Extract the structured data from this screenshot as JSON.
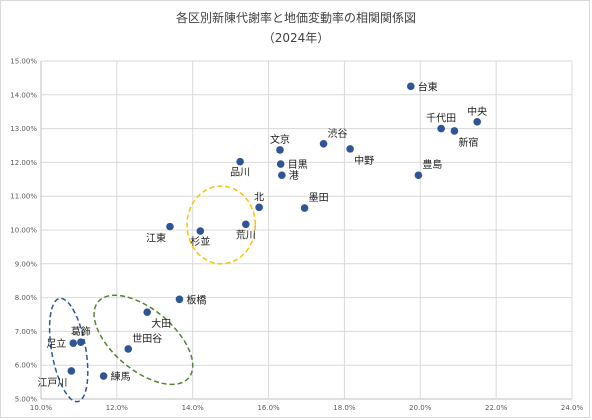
{
  "chart_data": {
    "type": "scatter",
    "title": "各区別新陳代謝率と地価変動率の相関関係図",
    "subtitle": "（2024年）",
    "xlabel": "",
    "ylabel": "",
    "xlim": [
      0.1,
      0.24
    ],
    "ylim": [
      0.05,
      0.15
    ],
    "x_ticks": [
      "10.0%",
      "12.0%",
      "14.0%",
      "16.0%",
      "18.0%",
      "20.0%",
      "22.0%",
      "24.0%"
    ],
    "y_ticks": [
      "5.00%",
      "6.00%",
      "7.00%",
      "8.00%",
      "9.00%",
      "10.00%",
      "11.00%",
      "12.00%",
      "13.00%",
      "14.00%",
      "15.00%"
    ],
    "grid": true,
    "marker_color": "#2f5597",
    "points": [
      {
        "label": "台東",
        "x": 0.1975,
        "y": 0.1425,
        "pos": "right"
      },
      {
        "label": "中央",
        "x": 0.215,
        "y": 0.132,
        "pos": "above"
      },
      {
        "label": "千代田",
        "x": 0.2055,
        "y": 0.13,
        "pos": "above"
      },
      {
        "label": "新宿",
        "x": 0.209,
        "y": 0.1293,
        "pos": "below-right"
      },
      {
        "label": "豊島",
        "x": 0.1995,
        "y": 0.1162,
        "pos": "above-right"
      },
      {
        "label": "渋谷",
        "x": 0.1745,
        "y": 0.1255,
        "pos": "above-right"
      },
      {
        "label": "中野",
        "x": 0.1815,
        "y": 0.124,
        "pos": "below-right"
      },
      {
        "label": "文京",
        "x": 0.163,
        "y": 0.1237,
        "pos": "above"
      },
      {
        "label": "目黒",
        "x": 0.1632,
        "y": 0.1195,
        "pos": "right"
      },
      {
        "label": "港",
        "x": 0.1635,
        "y": 0.1162,
        "pos": "right"
      },
      {
        "label": "品川",
        "x": 0.1525,
        "y": 0.1202,
        "pos": "below"
      },
      {
        "label": "墨田",
        "x": 0.1695,
        "y": 0.1065,
        "pos": "above-right"
      },
      {
        "label": "北",
        "x": 0.1575,
        "y": 0.1067,
        "pos": "above"
      },
      {
        "label": "荒川",
        "x": 0.154,
        "y": 0.1017,
        "pos": "below"
      },
      {
        "label": "杉並",
        "x": 0.142,
        "y": 0.0997,
        "pos": "below"
      },
      {
        "label": "江東",
        "x": 0.134,
        "y": 0.101,
        "pos": "below-left"
      },
      {
        "label": "板橋",
        "x": 0.1365,
        "y": 0.0795,
        "pos": "right"
      },
      {
        "label": "大田",
        "x": 0.128,
        "y": 0.0757,
        "pos": "below-right"
      },
      {
        "label": "世田谷",
        "x": 0.123,
        "y": 0.0648,
        "pos": "above-right"
      },
      {
        "label": "練馬",
        "x": 0.1165,
        "y": 0.0568,
        "pos": "right"
      },
      {
        "label": "葛飾",
        "x": 0.1105,
        "y": 0.0668,
        "pos": "above"
      },
      {
        "label": "足立",
        "x": 0.1085,
        "y": 0.0665,
        "pos": "left"
      },
      {
        "label": "江戸川",
        "x": 0.108,
        "y": 0.0583,
        "pos": "below-left"
      }
    ],
    "groups": [
      {
        "color": "#ffc000",
        "cx": 0.1475,
        "cy": 0.1015,
        "rx": 0.009,
        "ry": 0.0115
      },
      {
        "color": "#548235",
        "cx": 0.127,
        "cy": 0.0675,
        "rx": 0.008,
        "ry": 0.0175,
        "rotate": -50
      },
      {
        "color": "#2f5597",
        "cx": 0.1073,
        "cy": 0.0645,
        "rx": 0.0045,
        "ry": 0.0155,
        "rotate": -10
      }
    ]
  }
}
